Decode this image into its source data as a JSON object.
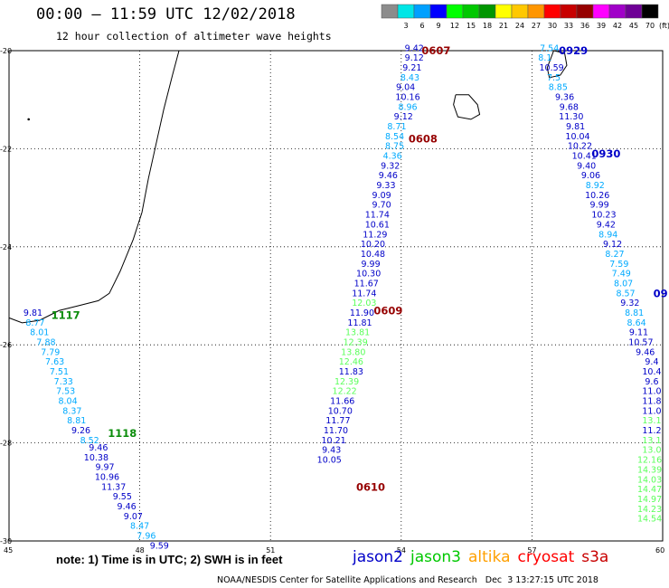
{
  "header": {
    "title": "00:00 – 11:59 UTC 12/02/2018",
    "subtitle": "12 hour collection of altimeter wave heights"
  },
  "colorbar": {
    "unit": "(ft)",
    "bins": [
      {
        "label": "",
        "color": "#8c8c8c"
      },
      {
        "label": "3",
        "color": "#00e6e6"
      },
      {
        "label": "6",
        "color": "#00a0ff"
      },
      {
        "label": "9",
        "color": "#0000ff"
      },
      {
        "label": "12",
        "color": "#00ff00"
      },
      {
        "label": "15",
        "color": "#00c800"
      },
      {
        "label": "18",
        "color": "#009600"
      },
      {
        "label": "21",
        "color": "#ffff00"
      },
      {
        "label": "24",
        "color": "#ffc800"
      },
      {
        "label": "27",
        "color": "#ff9600"
      },
      {
        "label": "30",
        "color": "#ff0000"
      },
      {
        "label": "33",
        "color": "#c80000"
      },
      {
        "label": "36",
        "color": "#960000"
      },
      {
        "label": "39",
        "color": "#ff00ff"
      },
      {
        "label": "42",
        "color": "#a000c8"
      },
      {
        "label": "45",
        "color": "#6e0096"
      },
      {
        "label": "70",
        "color": "#000000"
      }
    ]
  },
  "axes": {
    "lon_ticks": [
      "45",
      "48",
      "51",
      "54",
      "57",
      "60"
    ],
    "lat_ticks": [
      "-20",
      "-22",
      "-24",
      "-26",
      "-28",
      "-30"
    ],
    "lon_range": [
      45,
      60
    ],
    "lat_range": [
      -30,
      -20
    ]
  },
  "colors": {
    "jason2": "#0000c8",
    "jason3": "#00c800",
    "altika": "#ffa000",
    "cryosat": "#ff0000",
    "s3a": "#c80000",
    "time_label": "#960000",
    "band_blue": "#0000c8",
    "band_cyan": "#00aaff",
    "band_lightgreen": "#5aff5a",
    "band_green": "#0a8c0a"
  },
  "tracks": [
    {
      "satellite": "jason2",
      "time_labels": [
        {
          "text": "1117",
          "lon": 46.3,
          "lat": -25.4,
          "color": "green"
        },
        {
          "text": "1118",
          "lon": 47.6,
          "lat": -27.8,
          "color": "green"
        }
      ],
      "points": [
        {
          "v": "9.81",
          "lon": 45.55,
          "lat": -25.35,
          "c": "blue"
        },
        {
          "v": "8.77",
          "lon": 45.6,
          "lat": -25.55,
          "c": "cyan"
        },
        {
          "v": "8.01",
          "lon": 45.7,
          "lat": -25.75,
          "c": "cyan"
        },
        {
          "v": "7.88",
          "lon": 45.85,
          "lat": -25.95,
          "c": "cyan"
        },
        {
          "v": "7.79",
          "lon": 45.95,
          "lat": -26.15,
          "c": "cyan"
        },
        {
          "v": "7.63",
          "lon": 46.05,
          "lat": -26.35,
          "c": "cyan"
        },
        {
          "v": "7.51",
          "lon": 46.15,
          "lat": -26.55,
          "c": "cyan"
        },
        {
          "v": "7.33",
          "lon": 46.25,
          "lat": -26.75,
          "c": "cyan"
        },
        {
          "v": "7.53",
          "lon": 46.3,
          "lat": -26.95,
          "c": "cyan"
        },
        {
          "v": "8.04",
          "lon": 46.35,
          "lat": -27.15,
          "c": "cyan"
        },
        {
          "v": "8.37",
          "lon": 46.45,
          "lat": -27.35,
          "c": "cyan"
        },
        {
          "v": "8.81",
          "lon": 46.55,
          "lat": -27.55,
          "c": "cyan"
        },
        {
          "v": "9.26",
          "lon": 46.65,
          "lat": -27.75,
          "c": "blue"
        },
        {
          "v": "8.52",
          "lon": 46.85,
          "lat": -27.95,
          "c": "cyan"
        },
        {
          "v": "9.46",
          "lon": 47.05,
          "lat": -28.1,
          "c": "blue"
        },
        {
          "v": "10.38",
          "lon": 47.0,
          "lat": -28.3,
          "c": "blue"
        },
        {
          "v": "9.97",
          "lon": 47.2,
          "lat": -28.5,
          "c": "blue"
        },
        {
          "v": "10.96",
          "lon": 47.25,
          "lat": -28.7,
          "c": "blue"
        },
        {
          "v": "11.37",
          "lon": 47.4,
          "lat": -28.9,
          "c": "blue"
        },
        {
          "v": "9.55",
          "lon": 47.6,
          "lat": -29.1,
          "c": "blue"
        },
        {
          "v": "9.46",
          "lon": 47.7,
          "lat": -29.3,
          "c": "blue"
        },
        {
          "v": "9.07",
          "lon": 47.85,
          "lat": -29.5,
          "c": "blue"
        },
        {
          "v": "8.47",
          "lon": 48.0,
          "lat": -29.7,
          "c": "cyan"
        },
        {
          "v": "7.96",
          "lon": 48.15,
          "lat": -29.9,
          "c": "cyan"
        },
        {
          "v": "9.59",
          "lon": 48.45,
          "lat": -30.1,
          "c": "blue"
        }
      ]
    },
    {
      "satellite": "jason2",
      "time_labels": [
        {
          "text": "0607",
          "lon": 54.8,
          "lat": -20.0,
          "color": "time"
        },
        {
          "text": "0608",
          "lon": 54.5,
          "lat": -21.8,
          "color": "time"
        },
        {
          "text": "0609",
          "lon": 53.7,
          "lat": -25.3,
          "color": "time"
        },
        {
          "text": "0610",
          "lon": 53.3,
          "lat": -28.9,
          "color": "time"
        }
      ],
      "points": [
        {
          "v": "9.42",
          "lon": 54.3,
          "lat": -19.95,
          "c": "blue"
        },
        {
          "v": "9.12",
          "lon": 54.3,
          "lat": -20.15,
          "c": "blue"
        },
        {
          "v": "9.21",
          "lon": 54.25,
          "lat": -20.35,
          "c": "blue"
        },
        {
          "v": "8.43",
          "lon": 54.2,
          "lat": -20.55,
          "c": "cyan"
        },
        {
          "v": "9.04",
          "lon": 54.1,
          "lat": -20.75,
          "c": "blue"
        },
        {
          "v": "10.16",
          "lon": 54.15,
          "lat": -20.95,
          "c": "blue"
        },
        {
          "v": "8.96",
          "lon": 54.15,
          "lat": -21.15,
          "c": "cyan"
        },
        {
          "v": "9.12",
          "lon": 54.05,
          "lat": -21.35,
          "c": "blue"
        },
        {
          "v": "8.71",
          "lon": 53.9,
          "lat": -21.55,
          "c": "cyan"
        },
        {
          "v": "8.54",
          "lon": 53.85,
          "lat": -21.75,
          "c": "cyan"
        },
        {
          "v": "8.75",
          "lon": 53.85,
          "lat": -21.95,
          "c": "cyan"
        },
        {
          "v": "4.36",
          "lon": 53.8,
          "lat": -22.15,
          "c": "cyan"
        },
        {
          "v": "9.32",
          "lon": 53.75,
          "lat": -22.35,
          "c": "blue"
        },
        {
          "v": "9.46",
          "lon": 53.7,
          "lat": -22.55,
          "c": "blue"
        },
        {
          "v": "9.33",
          "lon": 53.65,
          "lat": -22.75,
          "c": "blue"
        },
        {
          "v": "9.09",
          "lon": 53.55,
          "lat": -22.95,
          "c": "blue"
        },
        {
          "v": "9.70",
          "lon": 53.55,
          "lat": -23.15,
          "c": "blue"
        },
        {
          "v": "11.74",
          "lon": 53.45,
          "lat": -23.35,
          "c": "blue"
        },
        {
          "v": "10.61",
          "lon": 53.45,
          "lat": -23.55,
          "c": "blue"
        },
        {
          "v": "11.29",
          "lon": 53.4,
          "lat": -23.75,
          "c": "blue"
        },
        {
          "v": "10.20",
          "lon": 53.35,
          "lat": -23.95,
          "c": "blue"
        },
        {
          "v": "10.48",
          "lon": 53.35,
          "lat": -24.15,
          "c": "blue"
        },
        {
          "v": "9.99",
          "lon": 53.3,
          "lat": -24.35,
          "c": "blue"
        },
        {
          "v": "10.30",
          "lon": 53.25,
          "lat": -24.55,
          "c": "blue"
        },
        {
          "v": "11.67",
          "lon": 53.2,
          "lat": -24.75,
          "c": "blue"
        },
        {
          "v": "11.74",
          "lon": 53.15,
          "lat": -24.95,
          "c": "blue"
        },
        {
          "v": "12.03",
          "lon": 53.15,
          "lat": -25.15,
          "c": "lightgreen"
        },
        {
          "v": "11.90",
          "lon": 53.1,
          "lat": -25.35,
          "c": "blue"
        },
        {
          "v": "11.81",
          "lon": 53.05,
          "lat": -25.55,
          "c": "blue"
        },
        {
          "v": "13.81",
          "lon": 53.0,
          "lat": -25.75,
          "c": "lightgreen"
        },
        {
          "v": "12.39",
          "lon": 52.95,
          "lat": -25.95,
          "c": "lightgreen"
        },
        {
          "v": "13.80",
          "lon": 52.9,
          "lat": -26.15,
          "c": "lightgreen"
        },
        {
          "v": "12.46",
          "lon": 52.85,
          "lat": -26.35,
          "c": "lightgreen"
        },
        {
          "v": "11.83",
          "lon": 52.85,
          "lat": -26.55,
          "c": "blue"
        },
        {
          "v": "12.39",
          "lon": 52.75,
          "lat": -26.75,
          "c": "lightgreen"
        },
        {
          "v": "12.22",
          "lon": 52.7,
          "lat": -26.95,
          "c": "lightgreen"
        },
        {
          "v": "11.66",
          "lon": 52.65,
          "lat": -27.15,
          "c": "blue"
        },
        {
          "v": "10.70",
          "lon": 52.6,
          "lat": -27.35,
          "c": "blue"
        },
        {
          "v": "11.77",
          "lon": 52.55,
          "lat": -27.55,
          "c": "blue"
        },
        {
          "v": "11.70",
          "lon": 52.5,
          "lat": -27.75,
          "c": "blue"
        },
        {
          "v": "10.21",
          "lon": 52.45,
          "lat": -27.95,
          "c": "blue"
        },
        {
          "v": "9.43",
          "lon": 52.4,
          "lat": -28.15,
          "c": "blue"
        },
        {
          "v": "10.05",
          "lon": 52.35,
          "lat": -28.35,
          "c": "blue"
        }
      ]
    },
    {
      "satellite": "jason2",
      "time_labels": [
        {
          "text": "0929",
          "lon": 57.95,
          "lat": -20.0,
          "color": "jason2"
        },
        {
          "text": "0930",
          "lon": 58.7,
          "lat": -22.1,
          "color": "jason2"
        }
      ],
      "points": [
        {
          "v": "7.54",
          "lon": 57.4,
          "lat": -19.95,
          "c": "cyan"
        },
        {
          "v": "8.1",
          "lon": 57.3,
          "lat": -20.15,
          "c": "cyan"
        },
        {
          "v": "10.59",
          "lon": 57.45,
          "lat": -20.35,
          "c": "blue"
        },
        {
          "v": "7.5",
          "lon": 57.5,
          "lat": -20.55,
          "c": "cyan"
        },
        {
          "v": "8.85",
          "lon": 57.6,
          "lat": -20.75,
          "c": "cyan"
        },
        {
          "v": "9.36",
          "lon": 57.75,
          "lat": -20.95,
          "c": "blue"
        },
        {
          "v": "9.68",
          "lon": 57.85,
          "lat": -21.15,
          "c": "blue"
        },
        {
          "v": "11.30",
          "lon": 57.9,
          "lat": -21.35,
          "c": "blue"
        },
        {
          "v": "9.81",
          "lon": 58.0,
          "lat": -21.55,
          "c": "blue"
        },
        {
          "v": "10.04",
          "lon": 58.05,
          "lat": -21.75,
          "c": "blue"
        },
        {
          "v": "10.22",
          "lon": 58.1,
          "lat": -21.95,
          "c": "blue"
        },
        {
          "v": "10.41",
          "lon": 58.2,
          "lat": -22.15,
          "c": "blue"
        },
        {
          "v": "9.40",
          "lon": 58.25,
          "lat": -22.35,
          "c": "blue"
        },
        {
          "v": "9.06",
          "lon": 58.35,
          "lat": -22.55,
          "c": "blue"
        },
        {
          "v": "8.92",
          "lon": 58.45,
          "lat": -22.75,
          "c": "cyan"
        },
        {
          "v": "10.26",
          "lon": 58.5,
          "lat": -22.95,
          "c": "blue"
        },
        {
          "v": "9.99",
          "lon": 58.55,
          "lat": -23.15,
          "c": "blue"
        },
        {
          "v": "10.23",
          "lon": 58.65,
          "lat": -23.35,
          "c": "blue"
        },
        {
          "v": "9.42",
          "lon": 58.7,
          "lat": -23.55,
          "c": "blue"
        },
        {
          "v": "8.94",
          "lon": 58.75,
          "lat": -23.75,
          "c": "cyan"
        },
        {
          "v": "9.12",
          "lon": 58.85,
          "lat": -23.95,
          "c": "blue"
        },
        {
          "v": "8.27",
          "lon": 58.9,
          "lat": -24.15,
          "c": "cyan"
        },
        {
          "v": "7.59",
          "lon": 59.0,
          "lat": -24.35,
          "c": "cyan"
        },
        {
          "v": "7.49",
          "lon": 59.05,
          "lat": -24.55,
          "c": "cyan"
        },
        {
          "v": "8.07",
          "lon": 59.1,
          "lat": -24.75,
          "c": "cyan"
        },
        {
          "v": "8.57",
          "lon": 59.15,
          "lat": -24.95,
          "c": "cyan"
        },
        {
          "v": "9.32",
          "lon": 59.25,
          "lat": -25.15,
          "c": "blue"
        },
        {
          "v": "8.81",
          "lon": 59.35,
          "lat": -25.35,
          "c": "cyan"
        },
        {
          "v": "8.64",
          "lon": 59.4,
          "lat": -25.55,
          "c": "cyan"
        },
        {
          "v": "9.11",
          "lon": 59.45,
          "lat": -25.75,
          "c": "blue"
        },
        {
          "v": "10.57",
          "lon": 59.5,
          "lat": -25.95,
          "c": "blue"
        },
        {
          "v": "9.46",
          "lon": 59.6,
          "lat": -26.15,
          "c": "blue"
        }
      ]
    },
    {
      "satellite": "jason3",
      "time_labels": [],
      "points": [
        {
          "v": "9.4",
          "lon": 59.75,
          "lat": -26.35,
          "c": "blue"
        },
        {
          "v": "10.4",
          "lon": 59.75,
          "lat": -26.55,
          "c": "blue"
        },
        {
          "v": "9.6",
          "lon": 59.75,
          "lat": -26.75,
          "c": "blue"
        },
        {
          "v": "11.0",
          "lon": 59.75,
          "lat": -26.95,
          "c": "blue"
        },
        {
          "v": "11.8",
          "lon": 59.75,
          "lat": -27.15,
          "c": "blue"
        },
        {
          "v": "11.0",
          "lon": 59.75,
          "lat": -27.35,
          "c": "blue"
        },
        {
          "v": "13.1",
          "lon": 59.75,
          "lat": -27.55,
          "c": "lightgreen"
        },
        {
          "v": "11.2",
          "lon": 59.75,
          "lat": -27.75,
          "c": "blue"
        },
        {
          "v": "13.1",
          "lon": 59.75,
          "lat": -27.95,
          "c": "lightgreen"
        },
        {
          "v": "13.0",
          "lon": 59.75,
          "lat": -28.15,
          "c": "lightgreen"
        },
        {
          "v": "12.16",
          "lon": 59.7,
          "lat": -28.35,
          "c": "lightgreen"
        },
        {
          "v": "14.39",
          "lon": 59.7,
          "lat": -28.55,
          "c": "lightgreen"
        },
        {
          "v": "14.03",
          "lon": 59.7,
          "lat": -28.75,
          "c": "lightgreen"
        },
        {
          "v": "14.47",
          "lon": 59.7,
          "lat": -28.95,
          "c": "lightgreen"
        },
        {
          "v": "14.97",
          "lon": 59.7,
          "lat": -29.15,
          "c": "lightgreen"
        },
        {
          "v": "14.23",
          "lon": 59.7,
          "lat": -29.35,
          "c": "lightgreen"
        },
        {
          "v": "14.54",
          "lon": 59.7,
          "lat": -29.55,
          "c": "lightgreen"
        }
      ]
    }
  ],
  "edge_labels": [
    {
      "text": "09",
      "lon": 59.95,
      "lat": -24.95,
      "color": "jason2"
    }
  ],
  "note": "note: 1) Time is in UTC; 2) SWH is in feet",
  "legend_names": [
    {
      "name": "jason2",
      "color": "#0000c8"
    },
    {
      "name": "jason3",
      "color": "#00c800"
    },
    {
      "name": "altika",
      "color": "#ffa000"
    },
    {
      "name": "cryosat",
      "color": "#ff0000"
    },
    {
      "name": "s3a",
      "color": "#c80000"
    }
  ],
  "footer": "NOAA/NESDIS Center for Satellite Applications and Research   Dec  3 13:27:15 UTC 2018"
}
